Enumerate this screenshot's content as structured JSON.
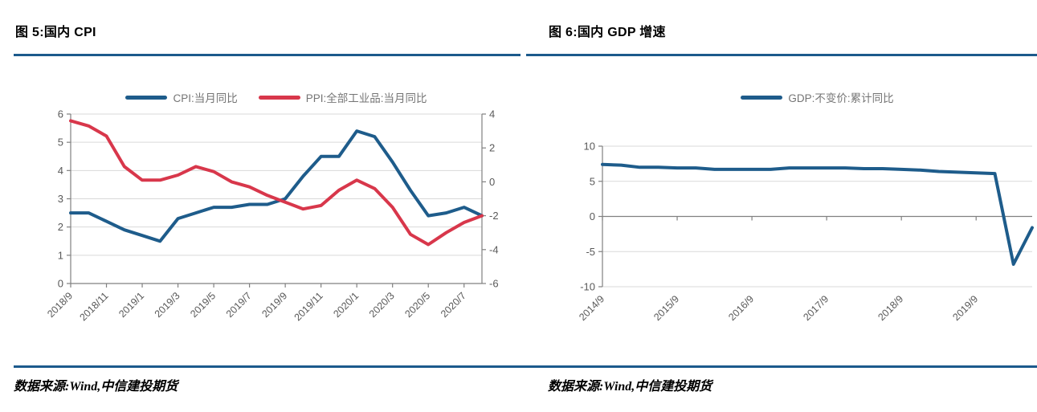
{
  "theme": {
    "accent_blue": "#1C5A8C",
    "line_blue": "#1E5C8B",
    "line_red": "#D8374B",
    "grid_color": "#D9D9D9",
    "axis_color": "#808080",
    "tick_label_color": "#595959",
    "legend_text_color": "#757575",
    "background": "#FFFFFF"
  },
  "panels": [
    {
      "title": "图 5:国内 CPI",
      "source": "数据来源:Wind,中信建投期货"
    },
    {
      "title": "图 6:国内 GDP 增速",
      "source": "数据来源:Wind,中信建投期货"
    }
  ],
  "chart_data": [
    {
      "type": "line",
      "title": "图 5:国内 CPI",
      "xlabel": "",
      "ylabel": "",
      "grid": true,
      "legend_position": "top",
      "categories": [
        "2018/9",
        "2018/10",
        "2018/11",
        "2018/12",
        "2019/1",
        "2019/2",
        "2019/3",
        "2019/4",
        "2019/5",
        "2019/6",
        "2019/7",
        "2019/8",
        "2019/9",
        "2019/10",
        "2019/11",
        "2019/12",
        "2020/1",
        "2020/2",
        "2020/3",
        "2020/4",
        "2020/5",
        "2020/6",
        "2020/7",
        "2020/8"
      ],
      "x_labels": [
        "2018/9",
        "2018/11",
        "2019/1",
        "2019/3",
        "2019/5",
        "2019/7",
        "2019/9",
        "2019/11",
        "2020/1",
        "2020/3",
        "2020/5",
        "2020/7"
      ],
      "x_label_indices": [
        0,
        2,
        4,
        6,
        8,
        10,
        12,
        14,
        16,
        18,
        20,
        22
      ],
      "left_axis": {
        "min": 0,
        "max": 6,
        "step": 1
      },
      "right_axis": {
        "min": -6,
        "max": 4,
        "step": 2
      },
      "x_axis_cross": 0,
      "series": [
        {
          "name": "CPI:当月同比",
          "axis": "left",
          "color": "#1E5C8B",
          "values": [
            2.5,
            2.5,
            2.2,
            1.9,
            1.7,
            1.5,
            2.3,
            2.5,
            2.7,
            2.7,
            2.8,
            2.8,
            3.0,
            3.8,
            4.5,
            4.5,
            5.4,
            5.2,
            4.3,
            3.3,
            2.4,
            2.5,
            2.7,
            2.4
          ]
        },
        {
          "name": "PPI:全部工业品:当月同比",
          "axis": "right",
          "color": "#D8374B",
          "values": [
            3.6,
            3.3,
            2.7,
            0.9,
            0.1,
            0.1,
            0.4,
            0.9,
            0.6,
            0.0,
            -0.3,
            -0.8,
            -1.2,
            -1.6,
            -1.4,
            -0.5,
            0.1,
            -0.4,
            -1.5,
            -3.1,
            -3.7,
            -3.0,
            -2.4,
            -2.0
          ]
        }
      ]
    },
    {
      "type": "line",
      "title": "图 6:国内 GDP 增速",
      "xlabel": "",
      "ylabel": "",
      "grid": true,
      "legend_position": "top",
      "categories": [
        "2014/9",
        "2014/12",
        "2015/3",
        "2015/6",
        "2015/9",
        "2015/12",
        "2016/3",
        "2016/6",
        "2016/9",
        "2016/12",
        "2017/3",
        "2017/6",
        "2017/9",
        "2017/12",
        "2018/3",
        "2018/6",
        "2018/9",
        "2018/12",
        "2019/3",
        "2019/6",
        "2019/9",
        "2019/12",
        "2020/3",
        "2020/6"
      ],
      "x_labels": [
        "2014/9",
        "2015/9",
        "2016/9",
        "2017/9",
        "2018/9",
        "2019/9"
      ],
      "x_label_indices": [
        0,
        4,
        8,
        12,
        16,
        20
      ],
      "left_axis": {
        "min": -10,
        "max": 10,
        "step": 5
      },
      "x_axis_cross": 0,
      "series": [
        {
          "name": "GDP:不变价:累计同比",
          "axis": "left",
          "color": "#1E5C8B",
          "values": [
            7.4,
            7.3,
            7.0,
            7.0,
            6.9,
            6.9,
            6.7,
            6.7,
            6.7,
            6.7,
            6.9,
            6.9,
            6.9,
            6.9,
            6.8,
            6.8,
            6.7,
            6.6,
            6.4,
            6.3,
            6.2,
            6.1,
            -6.8,
            -1.6
          ]
        }
      ]
    }
  ]
}
